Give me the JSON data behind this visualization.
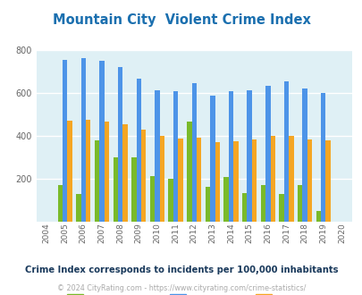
{
  "title": "Mountain City  Violent Crime Index",
  "years": [
    2004,
    2005,
    2006,
    2007,
    2008,
    2009,
    2010,
    2011,
    2012,
    2013,
    2014,
    2015,
    2016,
    2017,
    2018,
    2019,
    2020
  ],
  "mountain_city": [
    0,
    168,
    127,
    380,
    298,
    298,
    213,
    200,
    468,
    160,
    205,
    130,
    168,
    128,
    168,
    48,
    0
  ],
  "tennessee": [
    0,
    755,
    762,
    752,
    722,
    668,
    612,
    608,
    645,
    587,
    608,
    612,
    635,
    656,
    622,
    598,
    0
  ],
  "national": [
    0,
    469,
    474,
    468,
    452,
    430,
    401,
    388,
    390,
    368,
    376,
    383,
    400,
    400,
    383,
    380,
    0
  ],
  "color_mc": "#7aba2a",
  "color_tn": "#4d94e8",
  "color_nat": "#f5a623",
  "color_bg": "#dff0f5",
  "color_title": "#1a6faf",
  "color_subtitle": "#1a3a5c",
  "color_footer": "#aaaaaa",
  "color_url": "#4d94e8",
  "ylim": [
    0,
    800
  ],
  "yticks": [
    200,
    400,
    600,
    800
  ],
  "subtitle": "Crime Index corresponds to incidents per 100,000 inhabitants",
  "footer_plain": "© 2024 CityRating.com - ",
  "footer_url": "https://www.cityrating.com/crime-statistics/"
}
